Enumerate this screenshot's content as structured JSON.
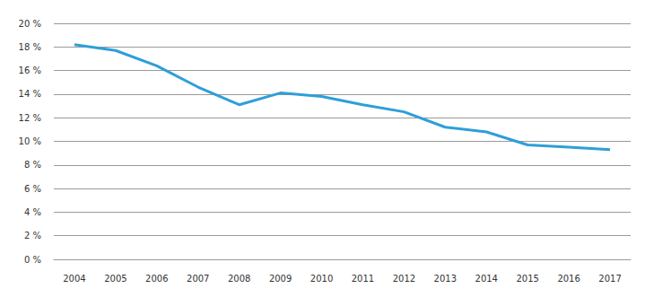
{
  "chart_data": {
    "type": "line",
    "categories": [
      "2004",
      "2005",
      "2006",
      "2007",
      "2008",
      "2009",
      "2010",
      "2011",
      "2012",
      "2013",
      "2014",
      "2015",
      "2016",
      "2017"
    ],
    "values": [
      18.2,
      17.7,
      16.4,
      14.6,
      13.1,
      14.1,
      13.8,
      13.1,
      12.5,
      11.2,
      10.8,
      9.7,
      9.5,
      9.3
    ],
    "color": "#2e9fd8",
    "ylim": [
      0,
      20
    ],
    "yticks": [
      {
        "value": 0,
        "label": "0 %"
      },
      {
        "value": 2,
        "label": "2 %"
      },
      {
        "value": 4,
        "label": "4 %"
      },
      {
        "value": 6,
        "label": "6 %"
      },
      {
        "value": 8,
        "label": "8 %"
      },
      {
        "value": 10,
        "label": "10 %"
      },
      {
        "value": 12,
        "label": "12 %"
      },
      {
        "value": 14,
        "label": "14 %"
      },
      {
        "value": 16,
        "label": "16 %"
      },
      {
        "value": 18,
        "label": "18 %"
      },
      {
        "value": 20,
        "label": "20 %"
      }
    ],
    "grid": true
  }
}
